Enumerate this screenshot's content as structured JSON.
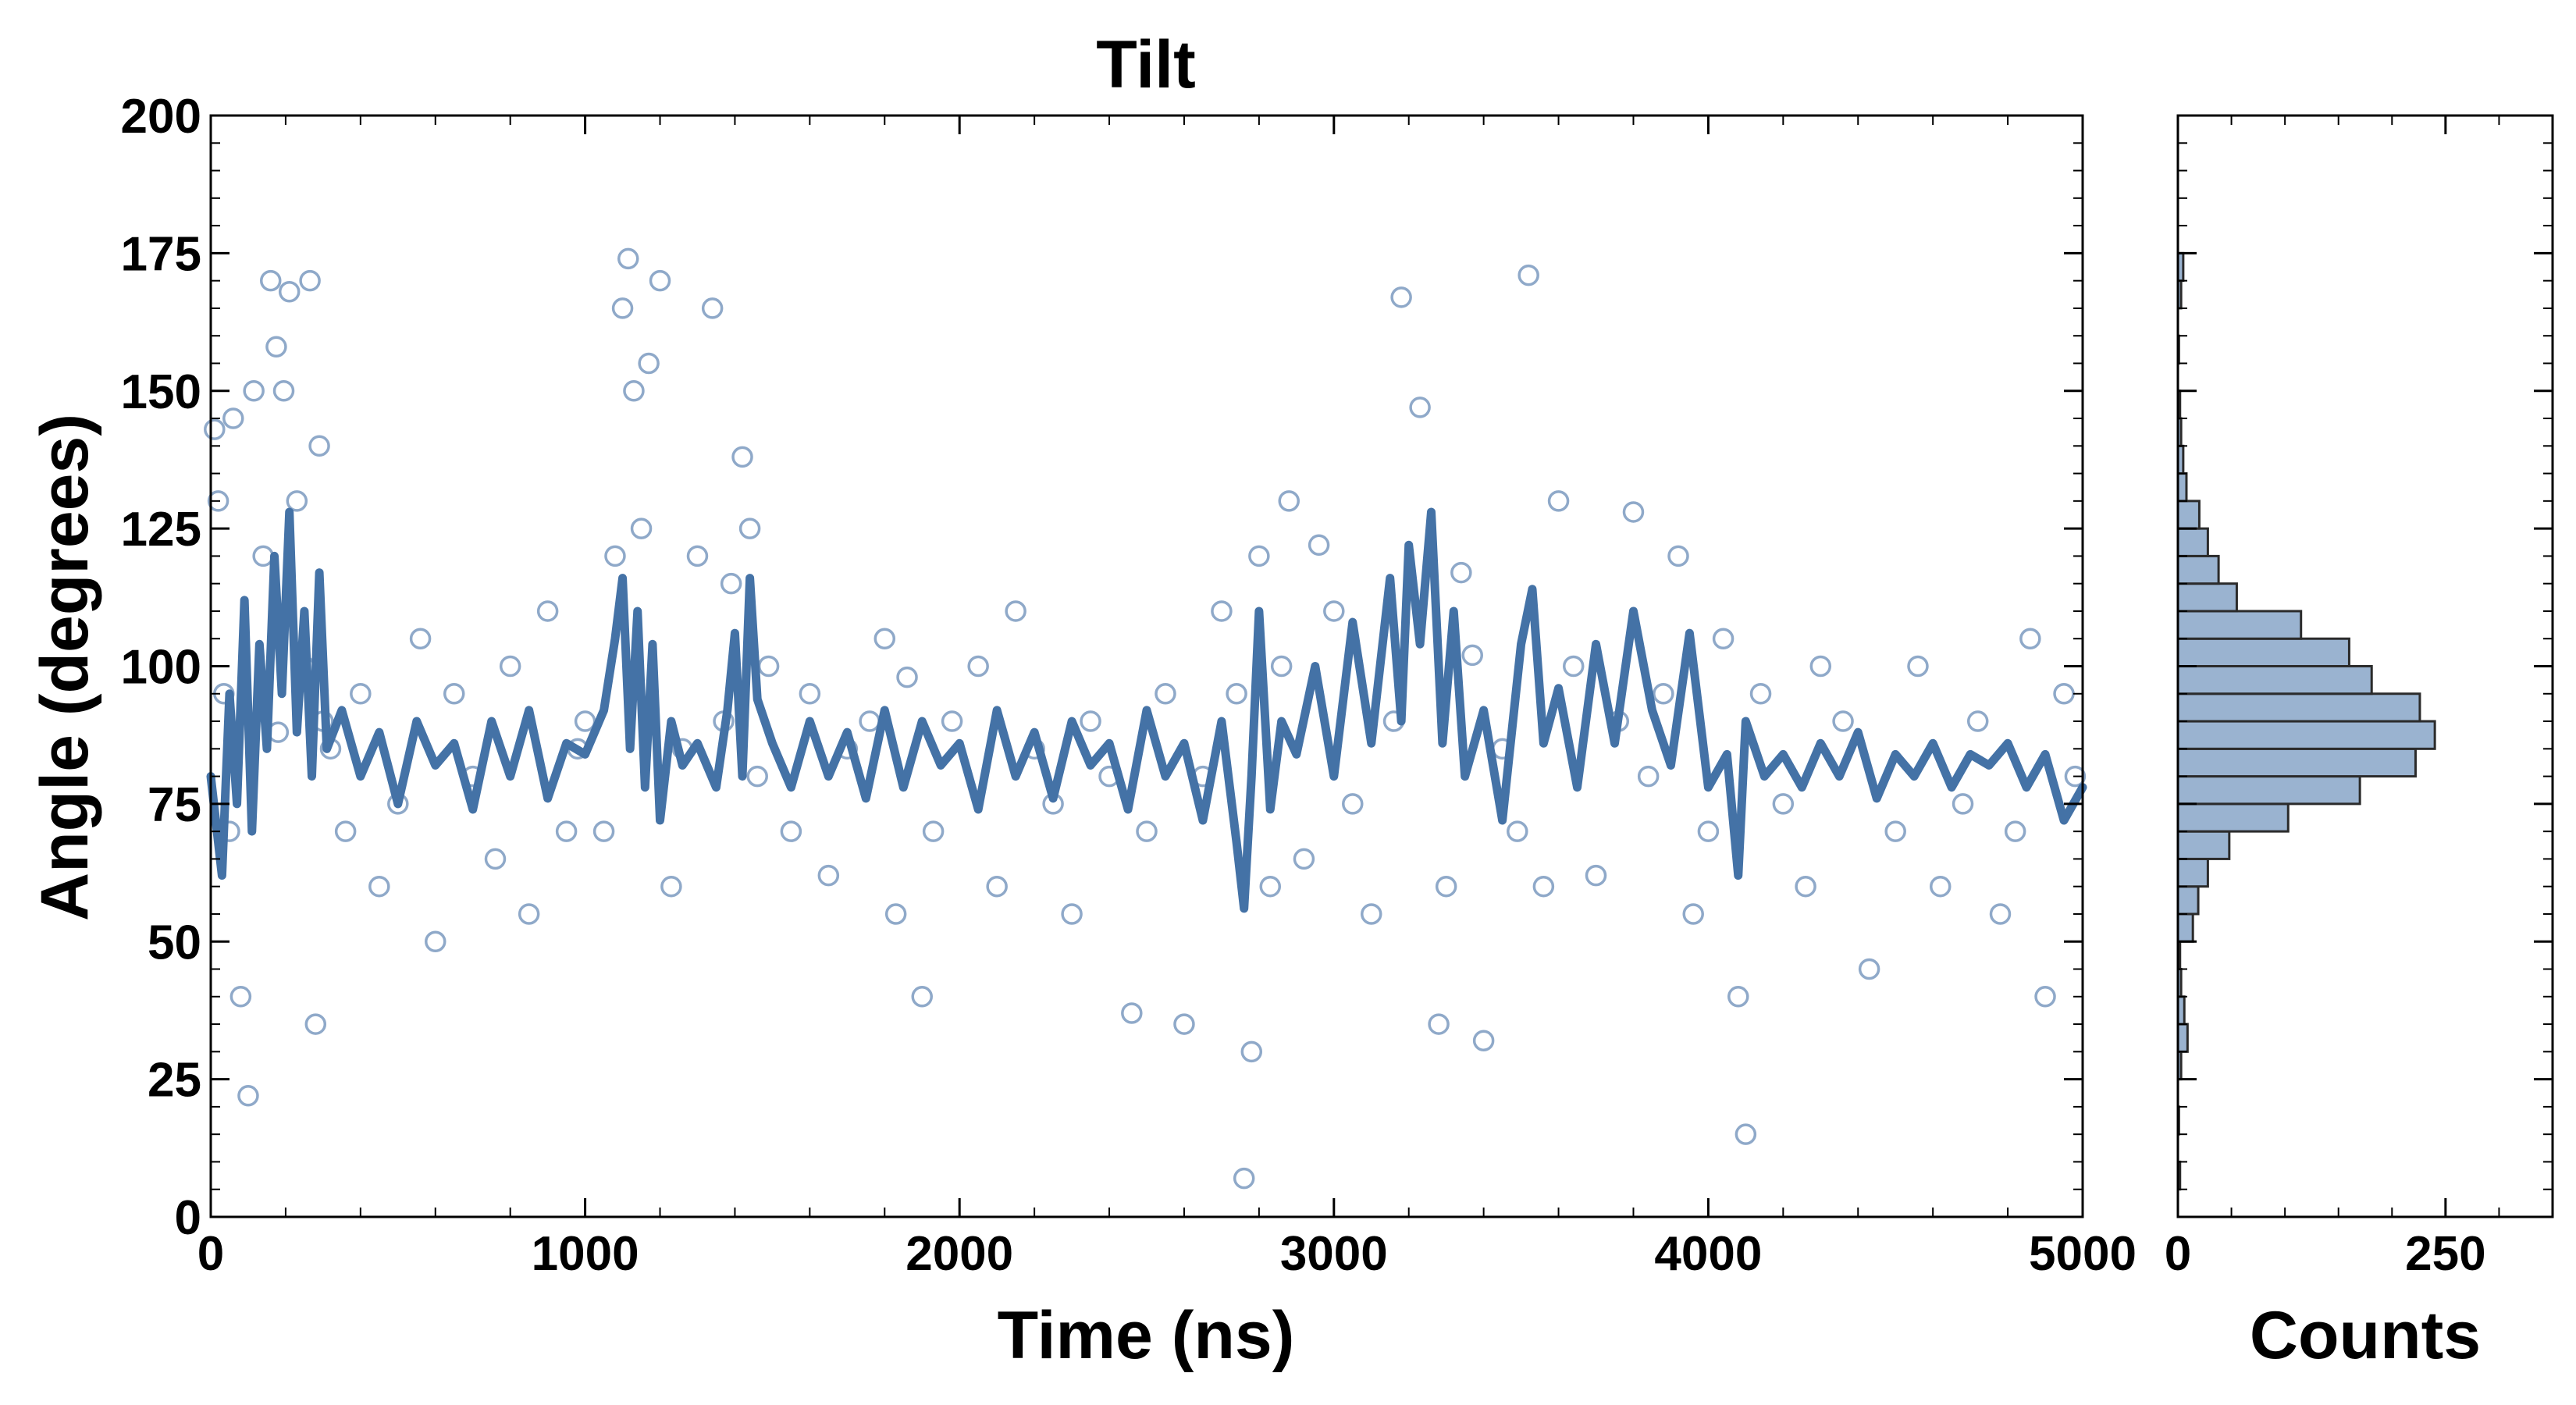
{
  "chart_data": [
    {
      "type": "scatter",
      "title": "Tilt",
      "xlabel": "Time (ns)",
      "ylabel": "Angle (degrees)",
      "xlim": [
        0,
        5000
      ],
      "ylim": [
        0,
        200
      ],
      "xticks": [
        0,
        1000,
        2000,
        3000,
        4000,
        5000
      ],
      "yticks": [
        0,
        25,
        50,
        75,
        100,
        125,
        150,
        175,
        200
      ],
      "grid": false,
      "legend": "none",
      "colors": {
        "scatter_edge": "#8fa9c9",
        "smoothed_line": "#4472a6"
      },
      "series": [
        {
          "kind": "scatter-open-circles",
          "x": [
            10,
            20,
            35,
            50,
            60,
            80,
            100,
            115,
            140,
            160,
            175,
            180,
            195,
            210,
            230,
            250,
            265,
            280,
            290,
            300,
            320,
            360,
            400,
            450,
            500,
            560,
            600,
            650,
            700,
            760,
            800,
            850,
            900,
            950,
            980,
            1000,
            1050,
            1080,
            1100,
            1115,
            1130,
            1150,
            1170,
            1200,
            1230,
            1260,
            1300,
            1340,
            1370,
            1390,
            1420,
            1440,
            1460,
            1490,
            1550,
            1600,
            1650,
            1700,
            1760,
            1800,
            1830,
            1860,
            1900,
            1930,
            1980,
            2050,
            2100,
            2150,
            2200,
            2250,
            2300,
            2350,
            2400,
            2460,
            2500,
            2550,
            2600,
            2650,
            2700,
            2740,
            2760,
            2780,
            2800,
            2830,
            2860,
            2880,
            2920,
            2960,
            3000,
            3050,
            3100,
            3160,
            3180,
            3230,
            3280,
            3300,
            3340,
            3370,
            3400,
            3450,
            3490,
            3520,
            3560,
            3600,
            3640,
            3700,
            3760,
            3800,
            3840,
            3880,
            3920,
            3960,
            4000,
            4040,
            4080,
            4100,
            4140,
            4200,
            4260,
            4300,
            4360,
            4430,
            4500,
            4560,
            4620,
            4680,
            4720,
            4780,
            4820,
            4860,
            4900,
            4950,
            4980
          ],
          "y": [
            143,
            130,
            95,
            70,
            145,
            40,
            22,
            150,
            120,
            170,
            158,
            88,
            150,
            168,
            130,
            100,
            170,
            35,
            140,
            90,
            85,
            70,
            95,
            60,
            75,
            105,
            50,
            95,
            80,
            65,
            100,
            55,
            110,
            70,
            85,
            90,
            70,
            120,
            165,
            174,
            150,
            125,
            155,
            170,
            60,
            85,
            120,
            165,
            90,
            115,
            138,
            125,
            80,
            100,
            70,
            95,
            62,
            85,
            90,
            105,
            55,
            98,
            40,
            70,
            90,
            100,
            60,
            110,
            85,
            75,
            55,
            90,
            80,
            37,
            70,
            95,
            35,
            80,
            110,
            95,
            7,
            30,
            120,
            60,
            100,
            130,
            65,
            122,
            110,
            75,
            55,
            90,
            167,
            147,
            35,
            60,
            117,
            102,
            32,
            85,
            70,
            171,
            60,
            130,
            100,
            62,
            90,
            128,
            80,
            95,
            120,
            55,
            70,
            105,
            40,
            15,
            95,
            75,
            60,
            100,
            90,
            45,
            70,
            100,
            60,
            75,
            90,
            55,
            70,
            105,
            40,
            95,
            80
          ]
        },
        {
          "kind": "smoothed-line",
          "x": [
            0,
            30,
            50,
            70,
            90,
            110,
            130,
            150,
            170,
            190,
            210,
            230,
            250,
            270,
            290,
            310,
            350,
            400,
            450,
            500,
            550,
            600,
            650,
            700,
            750,
            800,
            850,
            900,
            950,
            1000,
            1050,
            1080,
            1100,
            1120,
            1140,
            1160,
            1180,
            1200,
            1230,
            1260,
            1300,
            1350,
            1380,
            1400,
            1420,
            1440,
            1460,
            1500,
            1550,
            1600,
            1650,
            1700,
            1750,
            1800,
            1850,
            1900,
            1950,
            2000,
            2050,
            2100,
            2150,
            2200,
            2250,
            2300,
            2350,
            2400,
            2450,
            2500,
            2550,
            2600,
            2650,
            2700,
            2740,
            2760,
            2780,
            2800,
            2830,
            2860,
            2900,
            2950,
            3000,
            3050,
            3100,
            3150,
            3180,
            3200,
            3230,
            3260,
            3290,
            3320,
            3350,
            3400,
            3450,
            3500,
            3530,
            3560,
            3600,
            3650,
            3700,
            3750,
            3800,
            3850,
            3900,
            3950,
            4000,
            4050,
            4080,
            4100,
            4150,
            4200,
            4250,
            4300,
            4350,
            4400,
            4450,
            4500,
            4550,
            4600,
            4650,
            4700,
            4750,
            4800,
            4850,
            4900,
            4950,
            5000
          ],
          "y": [
            80,
            62,
            95,
            75,
            112,
            70,
            104,
            85,
            120,
            95,
            128,
            88,
            110,
            80,
            117,
            85,
            92,
            80,
            88,
            75,
            90,
            82,
            86,
            74,
            90,
            80,
            92,
            76,
            86,
            84,
            92,
            105,
            116,
            85,
            110,
            78,
            104,
            72,
            90,
            82,
            86,
            78,
            92,
            106,
            80,
            116,
            94,
            86,
            78,
            90,
            80,
            88,
            76,
            92,
            78,
            90,
            82,
            86,
            74,
            92,
            80,
            88,
            76,
            90,
            82,
            86,
            74,
            92,
            80,
            86,
            72,
            90,
            68,
            56,
            80,
            110,
            74,
            90,
            84,
            100,
            80,
            108,
            86,
            116,
            90,
            122,
            104,
            128,
            86,
            110,
            80,
            92,
            72,
            104,
            114,
            86,
            96,
            78,
            104,
            86,
            110,
            92,
            82,
            106,
            78,
            84,
            62,
            90,
            80,
            84,
            78,
            86,
            80,
            88,
            76,
            84,
            80,
            86,
            78,
            84,
            82,
            86,
            78,
            84,
            72,
            78
          ]
        }
      ]
    },
    {
      "type": "bar",
      "orientation": "horizontal",
      "title": "",
      "xlabel": "Counts",
      "ylabel": "",
      "xlim": [
        0,
        350
      ],
      "ylim": [
        0,
        200
      ],
      "xticks": [
        0,
        250
      ],
      "grid": false,
      "colors": {
        "fill": "#9ab3d0",
        "edge": "#2b2b2b"
      },
      "bin_width": 5,
      "bin_starts": [
        0,
        5,
        10,
        15,
        20,
        25,
        30,
        35,
        40,
        45,
        50,
        55,
        60,
        65,
        70,
        75,
        80,
        85,
        90,
        95,
        100,
        105,
        110,
        115,
        120,
        125,
        130,
        135,
        140,
        145,
        150,
        155,
        160,
        165,
        170,
        175,
        180,
        185,
        190,
        195
      ],
      "counts": [
        0,
        2,
        0,
        1,
        0,
        3,
        9,
        6,
        3,
        2,
        14,
        19,
        28,
        48,
        103,
        170,
        222,
        240,
        226,
        181,
        160,
        115,
        55,
        38,
        28,
        20,
        8,
        5,
        3,
        2,
        0,
        1,
        0,
        3,
        5,
        0,
        0,
        0,
        0,
        0
      ]
    }
  ]
}
